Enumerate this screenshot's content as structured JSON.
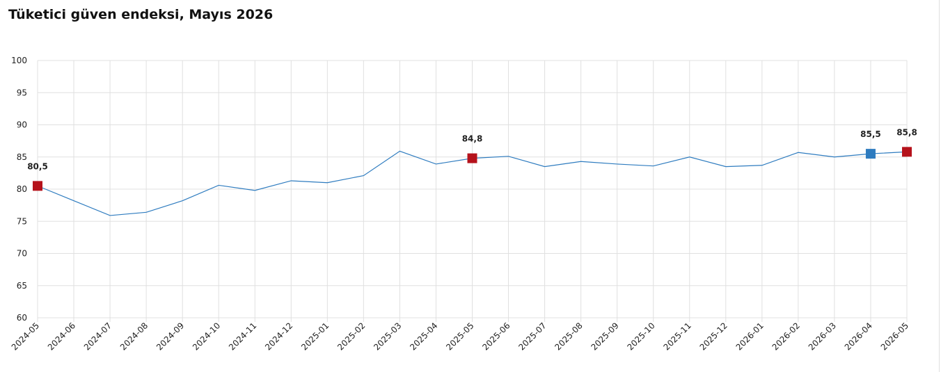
{
  "chart_data": {
    "type": "line",
    "title": "Tüketici güven endeksi, Mayıs 2026",
    "categories": [
      "2024-05",
      "2024-06",
      "2024-07",
      "2024-08",
      "2024-09",
      "2024-10",
      "2024-11",
      "2024-12",
      "2025-01",
      "2025-02",
      "2025-03",
      "2025-04",
      "2025-05",
      "2025-06",
      "2025-07",
      "2025-08",
      "2025-09",
      "2025-10",
      "2025-11",
      "2025-12",
      "2026-01",
      "2026-02",
      "2026-03",
      "2026-04",
      "2026-05"
    ],
    "series": [
      {
        "color": "#2d7bbf",
        "values": [
          80.5,
          78.2,
          75.9,
          76.4,
          78.2,
          80.6,
          79.8,
          81.3,
          81.0,
          82.1,
          85.9,
          83.9,
          84.8,
          85.1,
          83.5,
          84.3,
          83.9,
          83.6,
          85.0,
          83.5,
          83.7,
          85.7,
          85.0,
          85.5,
          85.8
        ],
        "value_labels": [
          "80,5",
          null,
          null,
          null,
          null,
          null,
          null,
          null,
          null,
          null,
          null,
          null,
          "84,8",
          null,
          null,
          null,
          null,
          null,
          null,
          null,
          null,
          null,
          null,
          "85,5",
          "85,8"
        ],
        "marker_colors": [
          "#b5121b",
          null,
          null,
          null,
          null,
          null,
          null,
          null,
          null,
          null,
          null,
          null,
          "#b5121b",
          null,
          null,
          null,
          null,
          null,
          null,
          null,
          null,
          null,
          null,
          "#2d7bbf",
          "#b5121b"
        ]
      }
    ],
    "ylim": [
      60,
      100
    ],
    "yticks": [
      60,
      65,
      70,
      75,
      80,
      85,
      90,
      95,
      100
    ],
    "grid": true
  }
}
